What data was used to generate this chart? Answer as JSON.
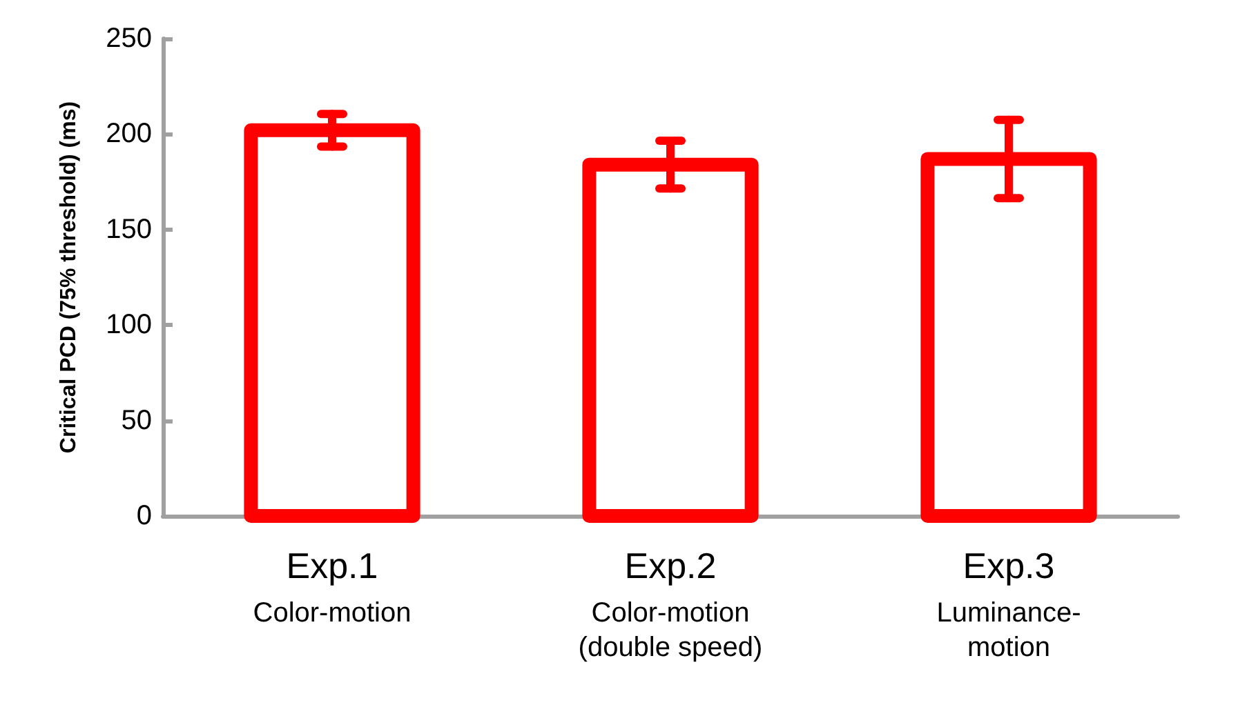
{
  "chart_data": {
    "type": "bar",
    "ylabel": "Critical PCD (75% threshold) (ms)",
    "categories": [
      "Exp.1\nColor-motion",
      "Exp.2\nColor-motion\n(double speed)",
      "Exp.3\nLuminance-\nmotion"
    ],
    "values": [
      202,
      184,
      187
    ],
    "errors": [
      8.5,
      12.5,
      20.5
    ],
    "color": "#ff0000",
    "ylim": [
      0,
      250
    ],
    "yticks": [
      0,
      50,
      100,
      150,
      200,
      250
    ],
    "grid": false
  }
}
